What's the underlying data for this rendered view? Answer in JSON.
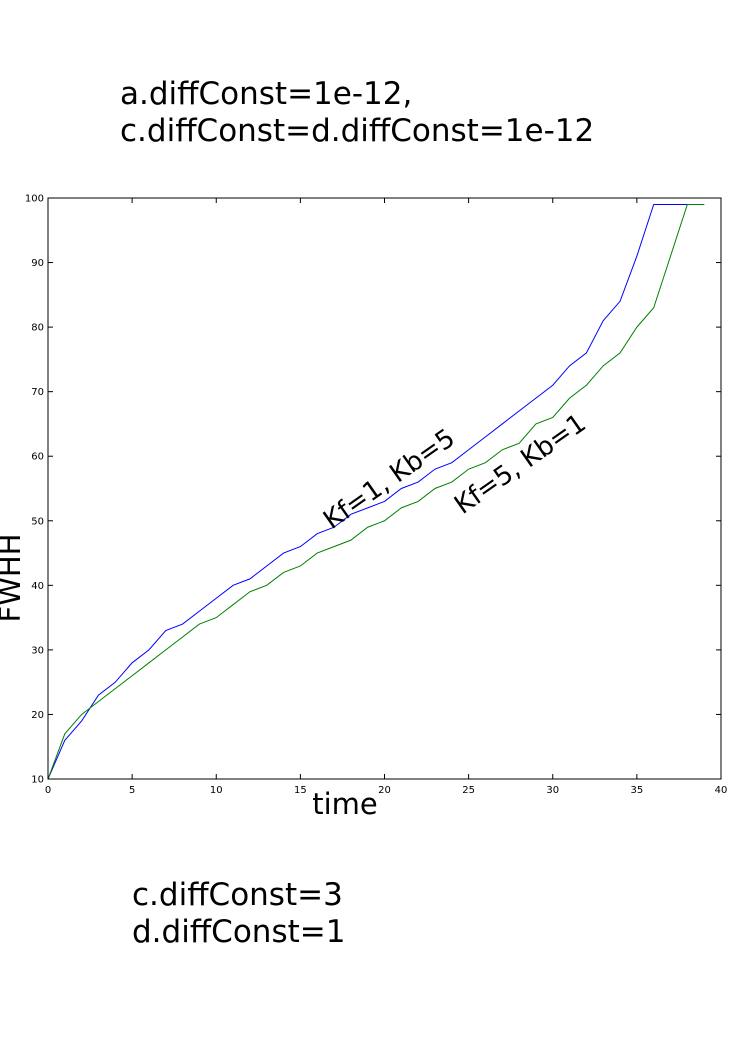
{
  "notes": {
    "top": [
      "a.diffConst=1e-12,",
      "c.diffConst=d.diffConst=1e-12"
    ],
    "bottom": [
      "c.diffConst=3",
      "d.diffConst=1"
    ]
  },
  "chart_data": {
    "type": "line",
    "xlabel": "time",
    "ylabel": "FWHH",
    "xlim": [
      0,
      40
    ],
    "ylim": [
      10,
      100
    ],
    "xticks": [
      0,
      5,
      10,
      15,
      20,
      25,
      30,
      35,
      40
    ],
    "yticks": [
      10,
      20,
      30,
      40,
      50,
      60,
      70,
      80,
      90,
      100
    ],
    "grid": false,
    "series": [
      {
        "name": "Kf=1, Kb=5",
        "color": "#0000ff",
        "x": [
          0,
          1,
          2,
          3,
          4,
          5,
          6,
          7,
          8,
          9,
          10,
          11,
          12,
          13,
          14,
          15,
          16,
          17,
          18,
          19,
          20,
          21,
          22,
          23,
          24,
          25,
          26,
          27,
          28,
          29,
          30,
          31,
          32,
          33,
          34,
          35,
          36,
          37,
          38,
          39
        ],
        "y": [
          10,
          16,
          19,
          23,
          25,
          28,
          30,
          33,
          34,
          36,
          38,
          40,
          41,
          43,
          45,
          46,
          48,
          49,
          51,
          52,
          53,
          55,
          56,
          58,
          59,
          61,
          63,
          65,
          67,
          69,
          71,
          74,
          76,
          81,
          84,
          91,
          99,
          99,
          99,
          99
        ]
      },
      {
        "name": "Kf=5, Kb=1",
        "color": "#008000",
        "x": [
          0,
          1,
          2,
          3,
          4,
          5,
          6,
          7,
          8,
          9,
          10,
          11,
          12,
          13,
          14,
          15,
          16,
          17,
          18,
          19,
          20,
          21,
          22,
          23,
          24,
          25,
          26,
          27,
          28,
          29,
          30,
          31,
          32,
          33,
          34,
          35,
          36,
          37,
          38,
          39
        ],
        "y": [
          10,
          17,
          20,
          22,
          24,
          26,
          28,
          30,
          32,
          34,
          35,
          37,
          39,
          40,
          42,
          43,
          45,
          46,
          47,
          49,
          50,
          52,
          53,
          55,
          56,
          58,
          59,
          61,
          62,
          65,
          66,
          69,
          71,
          74,
          76,
          80,
          83,
          91,
          99,
          99
        ]
      }
    ],
    "annotations": [
      "Kf=1, Kb=5",
      "Kf=5, Kb=1"
    ]
  }
}
